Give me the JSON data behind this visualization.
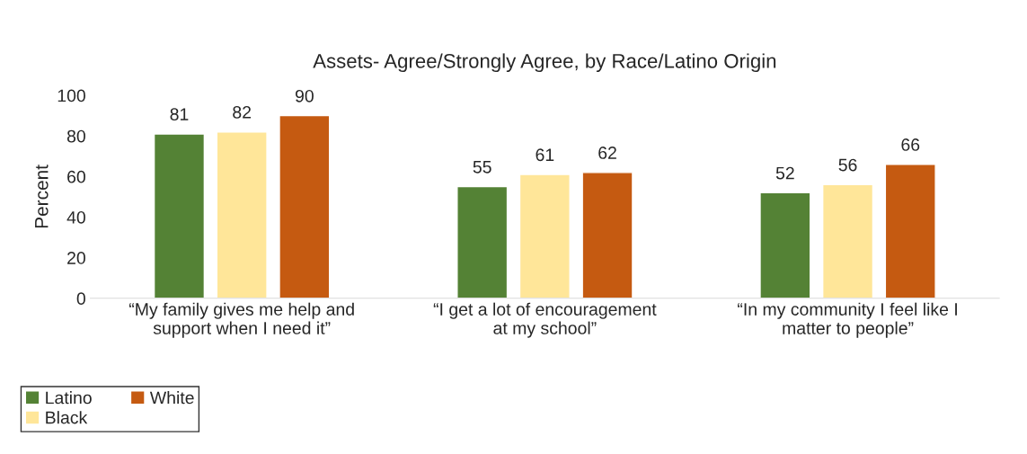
{
  "chart_data": {
    "type": "bar",
    "title": "Assets- Agree/Strongly Agree, by Race/Latino Origin",
    "ylabel": "Percent",
    "categories": [
      "“My family gives me help and\nsupport when I need it”",
      "“I get a lot of encouragement\nat my school”",
      "“In my community I feel like I\nmatter to people”"
    ],
    "series": [
      {
        "name": "Latino",
        "color": "#548235",
        "values": [
          81,
          55,
          52
        ]
      },
      {
        "name": "Black",
        "color": "#ffe699",
        "values": [
          82,
          61,
          56
        ]
      },
      {
        "name": "White",
        "color": "#c55a11",
        "values": [
          90,
          62,
          66
        ]
      }
    ],
    "ylim": [
      0,
      100
    ],
    "yticks": [
      0,
      20,
      40,
      60,
      80,
      100
    ],
    "grid": false,
    "data_labels": true,
    "legend": "bottom left"
  }
}
